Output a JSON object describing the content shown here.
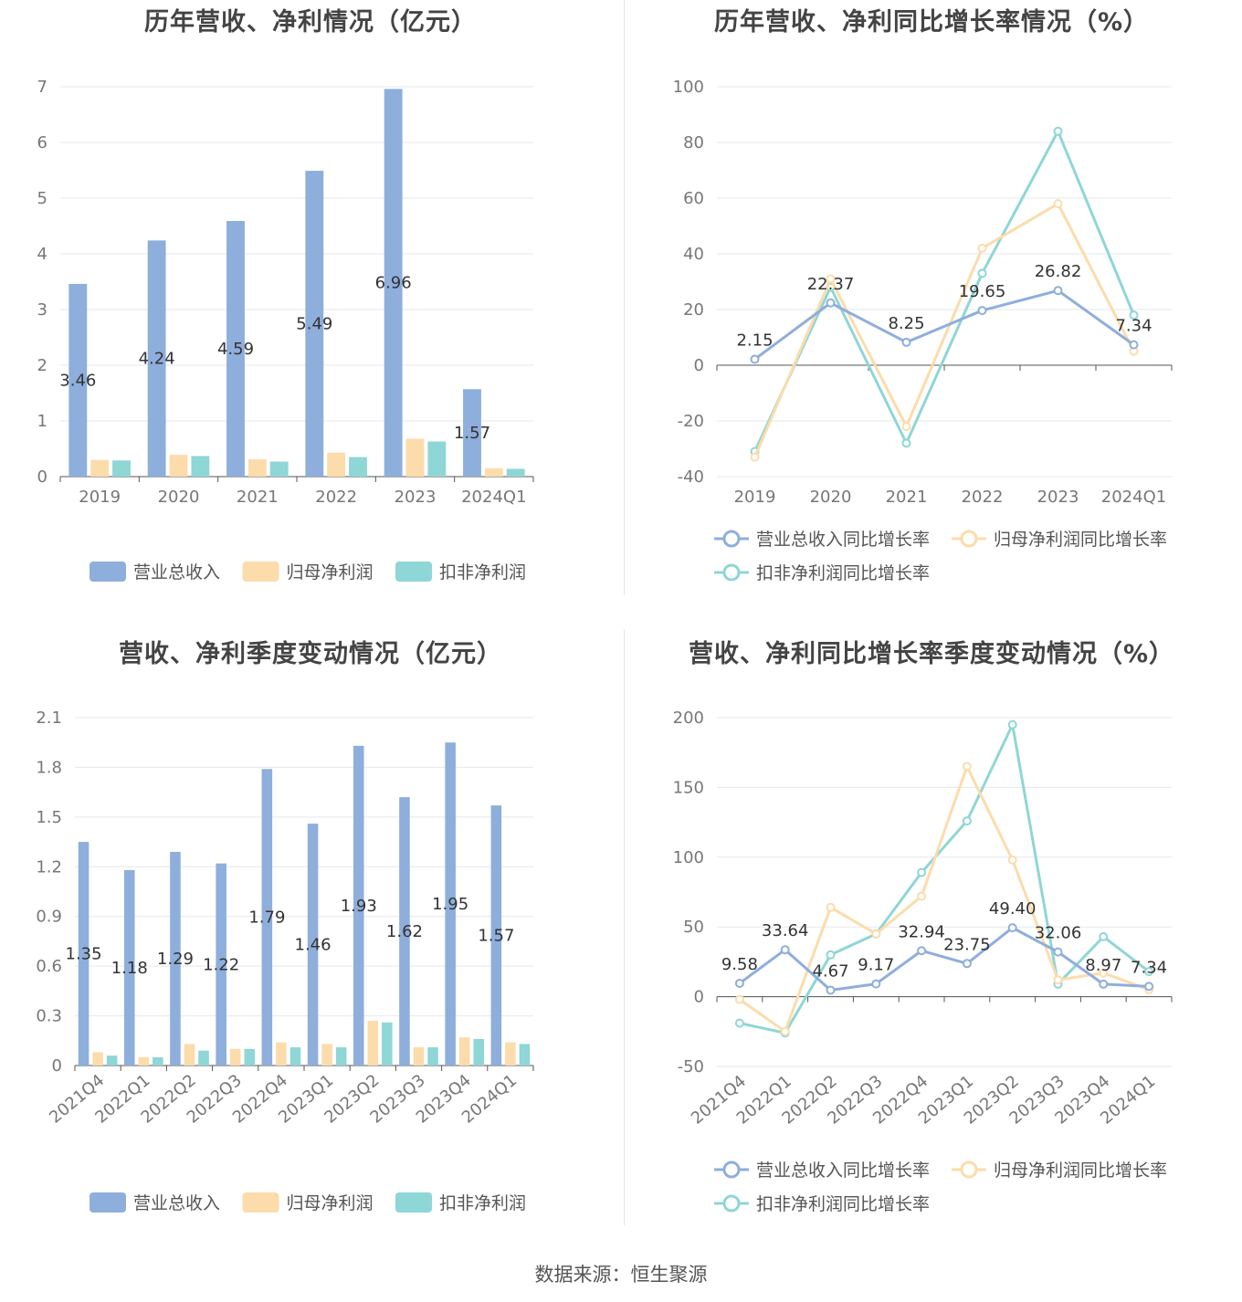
{
  "footer": "数据来源：恒生聚源",
  "colors": {
    "revenue": "#8eaedc",
    "net_profit": "#fcdcab",
    "deducted_profit": "#8fd6d6",
    "grid": "#e4e7ee",
    "axis": "#555555"
  },
  "charts": [
    {
      "id": "annual-bar",
      "title": "历年营收、净利情况（亿元）",
      "chart_data": {
        "type": "bar",
        "categories": [
          "2019",
          "2020",
          "2021",
          "2022",
          "2023",
          "2024Q1"
        ],
        "ylim": [
          0,
          7
        ],
        "yticks": [
          "0",
          "1",
          "2",
          "3",
          "4",
          "5",
          "6",
          "7"
        ],
        "series": [
          {
            "name": "营业总收入",
            "values": [
              3.46,
              4.24,
              4.59,
              5.49,
              6.96,
              1.57
            ],
            "labels": [
              "3.46",
              "4.24",
              "4.59",
              "5.49",
              "6.96",
              "1.57"
            ]
          },
          {
            "name": "归母净利润",
            "values": [
              0.3,
              0.39,
              0.31,
              0.43,
              0.68,
              0.15
            ]
          },
          {
            "name": "扣非净利润",
            "values": [
              0.29,
              0.37,
              0.27,
              0.35,
              0.63,
              0.14
            ]
          }
        ]
      }
    },
    {
      "id": "annual-line",
      "title": "历年营收、净利同比增长率情况（%）",
      "chart_data": {
        "type": "line",
        "categories": [
          "2019",
          "2020",
          "2021",
          "2022",
          "2023",
          "2024Q1"
        ],
        "ylim": [
          -40,
          100
        ],
        "yticks": [
          "-40",
          "-20",
          "0",
          "20",
          "40",
          "60",
          "80",
          "100"
        ],
        "series": [
          {
            "name": "营业总收入同比增长率",
            "values": [
              2.15,
              22.37,
              8.25,
              19.65,
              26.82,
              7.34
            ],
            "labels": [
              "2.15",
              "22.37",
              "8.25",
              "19.65",
              "26.82",
              "7.34"
            ]
          },
          {
            "name": "归母净利润同比增长率",
            "values": [
              -33,
              31,
              -22,
              42,
              58,
              5
            ]
          },
          {
            "name": "扣非净利润同比增长率",
            "values": [
              -31,
              28,
              -28,
              33,
              84,
              18
            ]
          }
        ]
      }
    },
    {
      "id": "quarter-bar",
      "title": "营收、净利季度变动情况（亿元）",
      "chart_data": {
        "type": "bar",
        "categories": [
          "2021Q4",
          "2022Q1",
          "2022Q2",
          "2022Q3",
          "2022Q4",
          "2023Q1",
          "2023Q2",
          "2023Q3",
          "2023Q4",
          "2024Q1"
        ],
        "ylim": [
          0,
          2.1
        ],
        "yticks": [
          "0",
          "0.3",
          "0.6",
          "0.9",
          "1.2",
          "1.5",
          "1.8",
          "2.1"
        ],
        "series": [
          {
            "name": "营业总收入",
            "values": [
              1.35,
              1.18,
              1.29,
              1.22,
              1.79,
              1.46,
              1.93,
              1.62,
              1.95,
              1.57
            ],
            "labels": [
              "1.35",
              "1.18",
              "1.29",
              "1.22",
              "1.79",
              "1.46",
              "1.93",
              "1.62",
              "1.95",
              "1.57"
            ]
          },
          {
            "name": "归母净利润",
            "values": [
              0.08,
              0.05,
              0.13,
              0.1,
              0.14,
              0.13,
              0.27,
              0.11,
              0.17,
              0.14
            ]
          },
          {
            "name": "扣非净利润",
            "values": [
              0.06,
              0.05,
              0.09,
              0.1,
              0.11,
              0.11,
              0.26,
              0.11,
              0.16,
              0.13
            ]
          }
        ]
      }
    },
    {
      "id": "quarter-line",
      "title": "营收、净利同比增长率季度变动情况（%）",
      "chart_data": {
        "type": "line",
        "categories": [
          "2021Q4",
          "2022Q1",
          "2022Q2",
          "2022Q3",
          "2022Q4",
          "2023Q1",
          "2023Q2",
          "2023Q3",
          "2023Q4",
          "2024Q1"
        ],
        "ylim": [
          -50,
          200
        ],
        "yticks": [
          "-50",
          "0",
          "50",
          "100",
          "150",
          "200"
        ],
        "series": [
          {
            "name": "营业总收入同比增长率",
            "values": [
              9.58,
              33.64,
              4.67,
              9.17,
              32.94,
              23.75,
              49.4,
              32.06,
              8.97,
              7.34
            ],
            "labels": [
              "9.58",
              "33.64",
              "4.67",
              "9.17",
              "32.94",
              "23.75",
              "49.40",
              "32.06",
              "8.97",
              "7.34"
            ]
          },
          {
            "name": "归母净利润同比增长率",
            "values": [
              -2,
              -25,
              64,
              45,
              72,
              165,
              98,
              12,
              17,
              5
            ]
          },
          {
            "name": "扣非净利润同比增长率",
            "values": [
              -19,
              -26,
              30,
              45,
              89,
              126,
              195,
              9,
              43,
              18
            ]
          }
        ]
      }
    }
  ]
}
